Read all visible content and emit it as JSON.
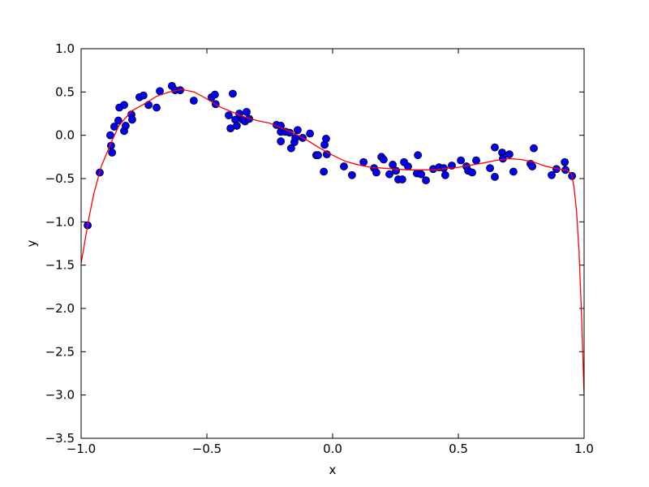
{
  "chart_data": {
    "type": "scatter",
    "x_label": "x",
    "y_label": "y",
    "xlim": [
      -1.0,
      1.0
    ],
    "ylim": [
      -3.5,
      1.0
    ],
    "xticks": [
      {
        "value": -1.0,
        "label": "−1.0"
      },
      {
        "value": -0.5,
        "label": "−0.5"
      },
      {
        "value": 0.0,
        "label": "0.0"
      },
      {
        "value": 0.5,
        "label": "0.5"
      },
      {
        "value": 1.0,
        "label": "1.0"
      }
    ],
    "yticks": [
      {
        "value": -3.5,
        "label": "−3.5"
      },
      {
        "value": -3.0,
        "label": "−3.0"
      },
      {
        "value": -2.5,
        "label": "−2.5"
      },
      {
        "value": -2.0,
        "label": "−2.0"
      },
      {
        "value": -1.5,
        "label": "−1.5"
      },
      {
        "value": -1.0,
        "label": "−1.0"
      },
      {
        "value": -0.5,
        "label": "−0.5"
      },
      {
        "value": 0.0,
        "label": "0.0"
      },
      {
        "value": 0.5,
        "label": "0.5"
      },
      {
        "value": 1.0,
        "label": "1.0"
      }
    ],
    "points": {
      "color": "#0000ff",
      "x": [
        -0.974,
        -0.926,
        -0.884,
        -0.881,
        -0.877,
        -0.868,
        -0.852,
        -0.848,
        -0.829,
        -0.829,
        -0.823,
        -0.8,
        -0.797,
        -0.768,
        -0.752,
        -0.732,
        -0.7,
        -0.687,
        -0.639,
        -0.626,
        -0.606,
        -0.552,
        -0.481,
        -0.468,
        -0.465,
        -0.413,
        -0.406,
        -0.397,
        -0.387,
        -0.381,
        -0.371,
        -0.358,
        -0.348,
        -0.342,
        -0.332,
        -0.223,
        -0.206,
        -0.206,
        -0.206,
        -0.187,
        -0.171,
        -0.165,
        -0.152,
        -0.148,
        -0.139,
        -0.119,
        -0.09,
        -0.065,
        -0.058,
        -0.035,
        -0.032,
        -0.026,
        -0.023,
        0.045,
        0.077,
        0.123,
        0.165,
        0.174,
        0.194,
        0.203,
        0.226,
        0.239,
        0.252,
        0.261,
        0.277,
        0.284,
        0.3,
        0.335,
        0.339,
        0.352,
        0.371,
        0.4,
        0.423,
        0.442,
        0.448,
        0.474,
        0.51,
        0.532,
        0.539,
        0.555,
        0.571,
        0.626,
        0.645,
        0.645,
        0.674,
        0.677,
        0.703,
        0.719,
        0.787,
        0.794,
        0.8,
        0.871,
        0.89,
        0.923,
        0.926,
        0.952
      ],
      "values": [
        -1.04,
        -0.43,
        0.0,
        -0.12,
        -0.2,
        0.1,
        0.17,
        0.32,
        0.35,
        0.05,
        0.11,
        0.24,
        0.18,
        0.44,
        0.46,
        0.35,
        0.32,
        0.51,
        0.57,
        0.52,
        0.52,
        0.4,
        0.44,
        0.47,
        0.36,
        0.23,
        0.08,
        0.48,
        0.18,
        0.11,
        0.25,
        0.18,
        0.16,
        0.27,
        0.19,
        0.12,
        0.11,
        -0.07,
        0.04,
        0.04,
        0.03,
        -0.15,
        -0.08,
        -0.03,
        0.06,
        -0.03,
        0.02,
        -0.23,
        -0.23,
        -0.42,
        -0.11,
        -0.04,
        -0.22,
        -0.36,
        -0.46,
        -0.31,
        -0.38,
        -0.43,
        -0.25,
        -0.28,
        -0.45,
        -0.34,
        -0.41,
        -0.51,
        -0.51,
        -0.31,
        -0.36,
        -0.44,
        -0.23,
        -0.45,
        -0.52,
        -0.39,
        -0.37,
        -0.38,
        -0.46,
        -0.35,
        -0.29,
        -0.36,
        -0.41,
        -0.43,
        -0.29,
        -0.38,
        -0.14,
        -0.48,
        -0.2,
        -0.27,
        -0.22,
        -0.42,
        -0.33,
        -0.36,
        -0.15,
        -0.46,
        -0.39,
        -0.31,
        -0.4,
        -0.47
      ]
    },
    "fit": {
      "color": "#ff0000",
      "x": [
        -1.0,
        -0.97,
        -0.95,
        -0.92,
        -0.88,
        -0.85,
        -0.8,
        -0.75,
        -0.7,
        -0.65,
        -0.6,
        -0.55,
        -0.5,
        -0.45,
        -0.4,
        -0.35,
        -0.3,
        -0.25,
        -0.2,
        -0.15,
        -0.1,
        -0.05,
        0.0,
        0.05,
        0.1,
        0.15,
        0.2,
        0.3,
        0.4,
        0.5,
        0.6,
        0.65,
        0.7,
        0.75,
        0.8,
        0.85,
        0.9,
        0.93,
        0.95,
        0.96,
        0.97,
        0.98,
        0.99,
        1.0
      ],
      "values": [
        -1.48,
        -0.97,
        -0.68,
        -0.36,
        -0.08,
        0.11,
        0.28,
        0.36,
        0.45,
        0.5,
        0.53,
        0.5,
        0.42,
        0.33,
        0.27,
        0.21,
        0.17,
        0.14,
        0.08,
        0.02,
        -0.06,
        -0.15,
        -0.23,
        -0.3,
        -0.34,
        -0.37,
        -0.38,
        -0.4,
        -0.4,
        -0.37,
        -0.32,
        -0.29,
        -0.27,
        -0.28,
        -0.31,
        -0.36,
        -0.39,
        -0.4,
        -0.45,
        -0.6,
        -0.88,
        -1.35,
        -2.1,
        -2.99
      ]
    }
  }
}
